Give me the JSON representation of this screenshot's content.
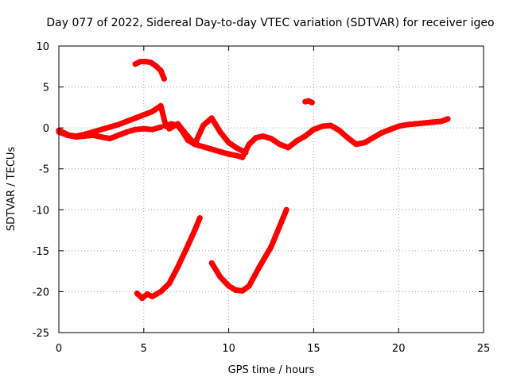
{
  "chart_data": {
    "type": "scatter",
    "title": "Day 077 of 2022, Sidereal Day-to-day VTEC variation (SDTVAR) for receiver igeo",
    "xlabel": "GPS time / hours",
    "ylabel": "SDTVAR / TECUs",
    "xlim": [
      0,
      25
    ],
    "ylim": [
      -25,
      10
    ],
    "xticks": [
      0,
      5,
      10,
      15,
      20,
      25
    ],
    "yticks": [
      10,
      5,
      0,
      -5,
      -10,
      -15,
      -20,
      -25
    ],
    "grid": true,
    "series_color": "#ff0000",
    "series": [
      {
        "name": "baseline",
        "x": [
          0,
          0.3,
          0.6,
          1.0,
          1.5,
          2.0,
          2.5,
          3.0,
          3.5,
          4.0,
          4.5,
          5.0,
          5.5,
          6.0,
          6.3,
          6.6,
          7.0,
          7.3,
          7.6,
          8.0,
          8.5,
          9.0,
          9.5,
          10.0,
          10.5,
          10.8,
          11.2,
          11.6,
          12.0,
          12.5,
          13.0,
          13.5,
          14.0,
          14.5,
          15.0,
          15.5,
          16.0,
          16.5,
          17.0,
          17.5,
          18.0,
          18.5,
          19.0,
          19.5,
          20.0,
          20.5,
          21.0,
          21.5,
          22.0,
          22.5,
          22.9
        ],
        "y": [
          -0.3,
          -0.6,
          -0.9,
          -1.0,
          -0.8,
          -0.5,
          -0.2,
          0.1,
          0.4,
          0.8,
          1.2,
          1.6,
          2.0,
          2.7,
          0.2,
          0.5,
          0.3,
          -0.5,
          -1.5,
          -2.0,
          -2.3,
          -2.6,
          -2.9,
          -3.2,
          -3.4,
          -3.6,
          -2.0,
          -1.2,
          -1.0,
          -1.3,
          -2.0,
          -2.4,
          -1.6,
          -1.0,
          -0.2,
          0.2,
          0.3,
          -0.3,
          -1.2,
          -2.0,
          -1.8,
          -1.2,
          -0.6,
          -0.2,
          0.2,
          0.4,
          0.5,
          0.6,
          0.7,
          0.8,
          1.1
        ]
      },
      {
        "name": "lower-branch",
        "x": [
          0,
          0.5,
          1.0,
          1.5,
          2.0,
          2.5,
          3.0,
          3.5,
          4.0,
          4.5,
          5.0,
          5.5,
          6.0
        ],
        "y": [
          -0.5,
          -0.9,
          -1.1,
          -1.0,
          -0.9,
          -1.1,
          -1.3,
          -0.9,
          -0.5,
          -0.2,
          -0.1,
          -0.2,
          0.1
        ]
      },
      {
        "name": "middle-branch",
        "x": [
          6.5,
          7.0,
          7.5,
          8.0,
          8.5,
          9.0,
          9.5,
          10.0,
          10.5,
          11.0
        ],
        "y": [
          -0.1,
          0.5,
          -0.8,
          -2.0,
          0.3,
          1.2,
          -0.5,
          -1.8,
          -2.5,
          -3.0
        ]
      },
      {
        "name": "left-arc",
        "x": [
          4.6,
          4.9,
          5.2,
          5.5,
          6.0,
          6.5,
          7.0,
          7.5,
          8.0,
          8.3
        ],
        "y": [
          -20.2,
          -20.8,
          -20.3,
          -20.6,
          -20.0,
          -19.0,
          -17.0,
          -14.8,
          -12.5,
          -11.0
        ]
      },
      {
        "name": "right-arc",
        "x": [
          9.0,
          9.5,
          10.0,
          10.4,
          10.8,
          11.2,
          11.8,
          12.5,
          13.0,
          13.4
        ],
        "y": [
          -16.5,
          -18.2,
          -19.3,
          -19.8,
          -19.9,
          -19.3,
          -17.0,
          -14.5,
          -12.0,
          -10.0
        ]
      },
      {
        "name": "upper-arc",
        "x": [
          4.5,
          4.8,
          5.1,
          5.4,
          5.7,
          6.0,
          6.2
        ],
        "y": [
          7.8,
          8.1,
          8.1,
          8.0,
          7.6,
          7.0,
          6.0
        ]
      },
      {
        "name": "short-segment",
        "x": [
          14.5,
          14.7,
          14.9
        ],
        "y": [
          3.2,
          3.3,
          3.1
        ]
      }
    ]
  }
}
